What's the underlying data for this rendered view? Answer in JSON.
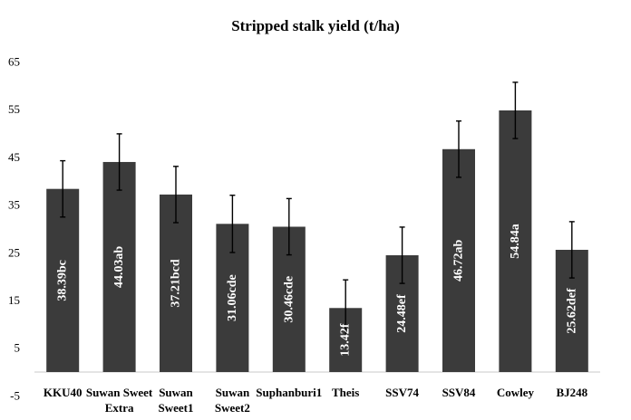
{
  "chart_data": {
    "type": "bar",
    "title": "Stripped stalk yield (t/ha)",
    "xlabel": "",
    "ylabel": "",
    "categories": [
      [
        "KKU40"
      ],
      [
        "Suwan Sweet",
        "Extra"
      ],
      [
        "Suwan",
        "Sweet1"
      ],
      [
        "Suwan",
        "Sweet2"
      ],
      [
        "Suphanburi1"
      ],
      [
        "Theis"
      ],
      [
        "SSV74"
      ],
      [
        "SSV84"
      ],
      [
        "Cowley"
      ],
      [
        "BJ248"
      ]
    ],
    "values": [
      38.39,
      44.03,
      37.21,
      31.06,
      30.46,
      13.42,
      24.48,
      46.72,
      54.84,
      25.62
    ],
    "error": [
      5.9,
      5.9,
      5.9,
      6.0,
      5.9,
      5.9,
      5.9,
      5.9,
      5.9,
      5.9
    ],
    "data_labels": [
      "38.39bc",
      "44.03ab",
      "37.21bcd",
      "31.06cde",
      "30.46cde",
      "13.42f",
      "24.48ef",
      "46.72ab",
      "54.84a",
      "25.62def"
    ],
    "yticks": [
      -5,
      5,
      15,
      25,
      35,
      45,
      55,
      65
    ],
    "ylim": [
      -5,
      65
    ],
    "grid": false,
    "legend": "none",
    "colors": {
      "bar": "#3b3b3b",
      "error_bar": "#000000",
      "label": "#ffffff",
      "axis": "#c8c8c8"
    }
  }
}
